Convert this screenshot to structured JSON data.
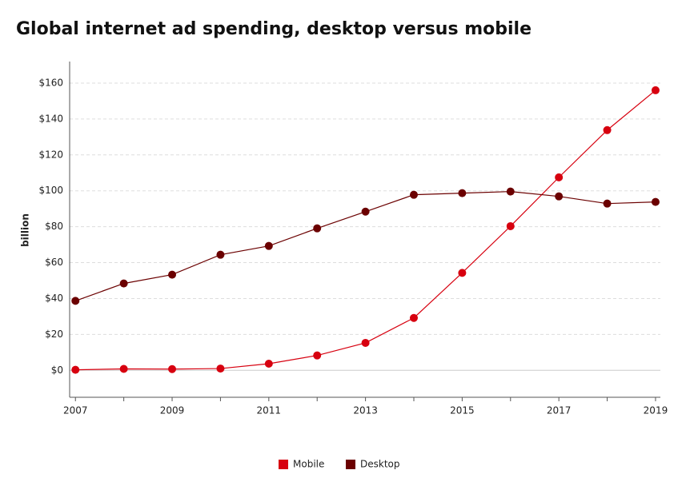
{
  "chart_data": {
    "type": "line",
    "title": "Global internet ad spending, desktop versus mobile",
    "y_label": "billion",
    "x": [
      2007,
      2008,
      2009,
      2010,
      2011,
      2012,
      2013,
      2014,
      2015,
      2016,
      2017,
      2018,
      2019
    ],
    "series": [
      {
        "name": "Mobile",
        "color": "#d7000f",
        "values": [
          0.3,
          0.8,
          0.7,
          1.0,
          3.7,
          8.3,
          15.3,
          29.2,
          54.3,
          80.3,
          107.5,
          133.8,
          156.0
        ]
      },
      {
        "name": "Desktop",
        "color": "#6b0000",
        "values": [
          38.7,
          48.4,
          53.3,
          64.4,
          69.3,
          79.1,
          88.4,
          97.8,
          98.7,
          99.6,
          96.9,
          92.9,
          93.8
        ]
      }
    ],
    "xlim": [
      2006.88,
      2019.1
    ],
    "xticks": [
      2007,
      2009,
      2011,
      2013,
      2015,
      2017,
      2019
    ],
    "xminor_ticks": [
      2008,
      2010,
      2012,
      2014,
      2016,
      2018
    ],
    "ylim": [
      -15,
      172
    ],
    "yticks": [
      {
        "value": 0,
        "label": "$0"
      },
      {
        "value": 20,
        "label": "$20"
      },
      {
        "value": 40,
        "label": "$40"
      },
      {
        "value": 60,
        "label": "$60"
      },
      {
        "value": 80,
        "label": "$80"
      },
      {
        "value": 100,
        "label": "$100"
      },
      {
        "value": 120,
        "label": "$120"
      },
      {
        "value": 140,
        "label": "$140"
      },
      {
        "value": 160,
        "label": "$160"
      }
    ],
    "grid": true,
    "legend": "bottom"
  }
}
